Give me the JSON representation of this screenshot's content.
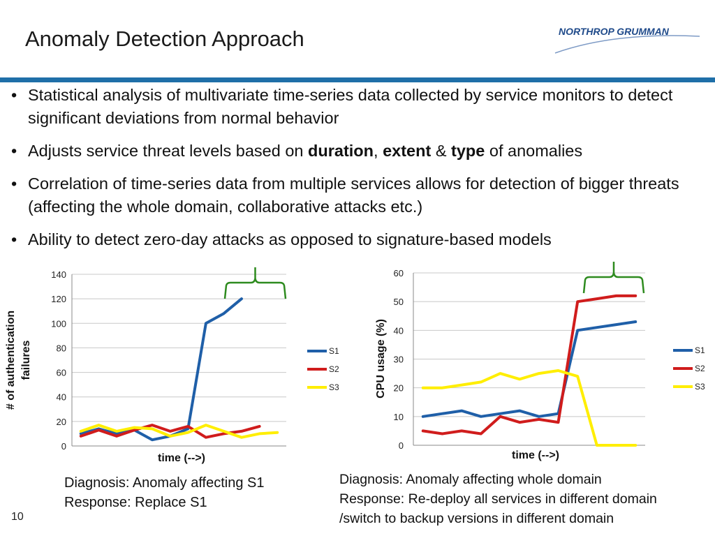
{
  "slide": {
    "title": "Anomaly Detection Approach",
    "logo_text": "NORTHROP GRUMMAN",
    "page_number": "10",
    "bullets": [
      {
        "text": "Statistical analysis of multivariate time-series data collected by service monitors to detect significant deviations from normal behavior"
      },
      {
        "pre": "Adjusts service threat levels based on ",
        "b1": "duration",
        "mid1": ", ",
        "b2": "extent",
        "mid2": " & ",
        "b3": "type",
        "post": " of anomalies"
      },
      {
        "text": "Correlation of time-series data from multiple services allows for detection of bigger threats (affecting the whole domain, collaborative attacks etc.)"
      },
      {
        "text": "Ability to detect zero-day attacks as opposed to signature-based models"
      }
    ],
    "captions": {
      "left_line1": "Diagnosis: Anomaly affecting S1",
      "left_line2": "Response: Replace S1",
      "right_line1": "Diagnosis: Anomaly affecting whole domain",
      "right_line2": "Response: Re-deploy all services in different domain",
      "right_line3": "/switch to backup versions in different domain"
    },
    "colors": {
      "accent_bar": "#1f6fa8",
      "bracket": "#2e8b1f"
    }
  },
  "chart_data": [
    {
      "type": "line",
      "ylabel": "# of authentication failures",
      "xlabel": "time (-->)",
      "ylim": [
        0,
        140
      ],
      "yticks": [
        0,
        20,
        40,
        60,
        80,
        100,
        120,
        140
      ],
      "x": [
        1,
        2,
        3,
        4,
        5,
        6,
        7,
        8,
        9,
        10,
        11,
        12
      ],
      "series": [
        {
          "name": "S1",
          "color": "#1f5fa8",
          "values": [
            10,
            14,
            10,
            13,
            5,
            8,
            14,
            100,
            108,
            120,
            null,
            null
          ]
        },
        {
          "name": "S2",
          "color": "#d01c1c",
          "values": [
            8,
            13,
            8,
            13,
            17,
            12,
            16,
            7,
            10,
            12,
            16,
            null
          ]
        },
        {
          "name": "S3",
          "color": "#ffee00",
          "values": [
            12,
            17,
            12,
            15,
            14,
            8,
            11,
            17,
            12,
            7,
            10,
            11
          ]
        }
      ],
      "grid": true,
      "legend": "right"
    },
    {
      "type": "line",
      "ylabel": "CPU usage (%)",
      "xlabel": "time (-->)",
      "ylim": [
        0,
        60
      ],
      "yticks": [
        0,
        10,
        20,
        30,
        40,
        50,
        60
      ],
      "x": [
        1,
        2,
        3,
        4,
        5,
        6,
        7,
        8,
        9,
        10,
        11,
        12
      ],
      "series": [
        {
          "name": "S1",
          "color": "#1f5fa8",
          "values": [
            10,
            11,
            12,
            10,
            11,
            12,
            10,
            11,
            40,
            41,
            42,
            43
          ]
        },
        {
          "name": "S2",
          "color": "#d01c1c",
          "values": [
            5,
            4,
            5,
            4,
            10,
            8,
            9,
            8,
            50,
            51,
            52,
            52
          ]
        },
        {
          "name": "S3",
          "color": "#ffee00",
          "values": [
            20,
            20,
            21,
            22,
            25,
            23,
            25,
            26,
            24,
            0,
            0,
            0
          ]
        }
      ],
      "grid": true,
      "legend": "right"
    }
  ]
}
